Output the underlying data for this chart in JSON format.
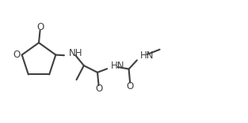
{
  "line_color": "#404040",
  "line_width": 1.5,
  "font_size": 8.5,
  "font_color": "#404040",
  "xlim": [
    0,
    10
  ],
  "ylim": [
    0,
    5
  ],
  "figsize": [
    3.13,
    1.56
  ],
  "dpi": 100
}
